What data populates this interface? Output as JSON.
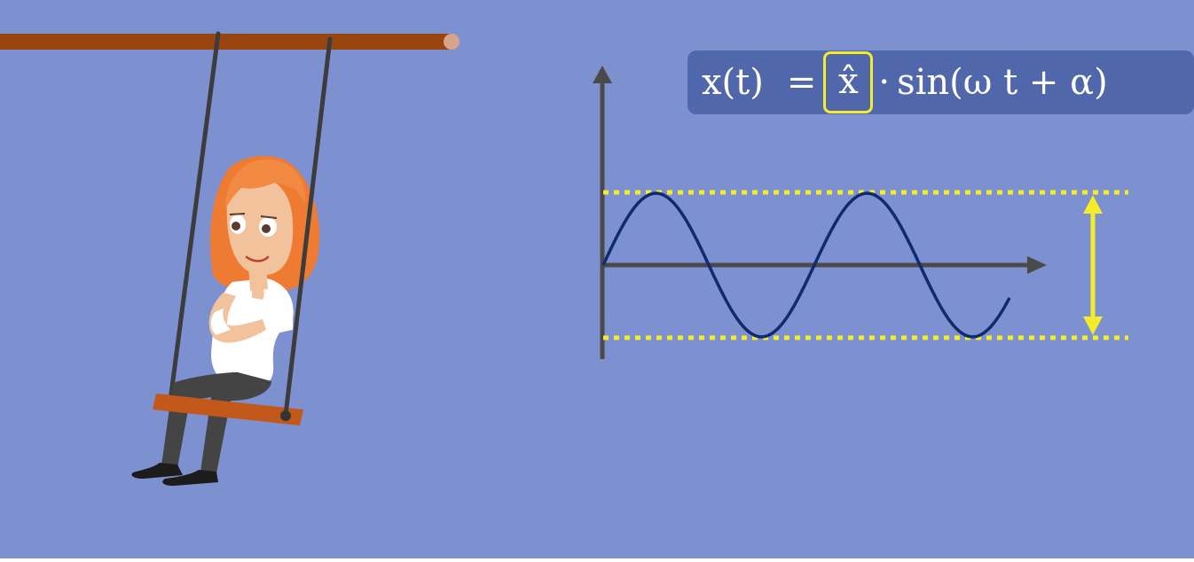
{
  "colors": {
    "background": "#7d91d1",
    "formula_box": "#5068ab",
    "highlight": "#f4ec2a",
    "wave": "#0f2a6e",
    "axis": "#4a4a4a",
    "swing_bar": "#98450f",
    "seat": "#c2591a",
    "hair": "#f07a32"
  },
  "formula": {
    "lhs": "x(t)",
    "equals": "=",
    "amplitude": "x̂",
    "dot": "·",
    "rest": "sin(ω t + α)"
  },
  "icons": {
    "character": "girl-on-swing-illustration",
    "amplitude_marker": "double-headed-arrow-icon"
  }
}
